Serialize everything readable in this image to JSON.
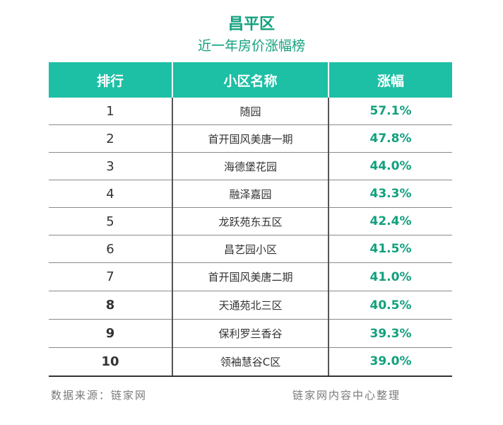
{
  "colors": {
    "accent": "#1dbfa5",
    "rate_text": "#12a07e",
    "title_text": "#12a07e",
    "header_text": "#ffffff",
    "footnote_text": "#7a7a7a"
  },
  "chart_data": {
    "type": "table",
    "title": "昌平区",
    "subtitle": "近一年房价涨幅榜",
    "columns": [
      "排行",
      "小区名称",
      "涨幅"
    ],
    "rows": [
      {
        "rank": "1",
        "name": "随园",
        "rate": "57.1%"
      },
      {
        "rank": "2",
        "name": "首开国风美唐一期",
        "rate": "47.8%"
      },
      {
        "rank": "3",
        "name": "海德堡花园",
        "rate": "44.0%"
      },
      {
        "rank": "4",
        "name": "融泽嘉园",
        "rate": "43.3%"
      },
      {
        "rank": "5",
        "name": "龙跃苑东五区",
        "rate": "42.4%"
      },
      {
        "rank": "6",
        "name": "昌艺园小区",
        "rate": "41.5%"
      },
      {
        "rank": "7",
        "name": "首开国风美唐二期",
        "rate": "41.0%"
      },
      {
        "rank": "8",
        "name": "天通苑北三区",
        "rate": "40.5%"
      },
      {
        "rank": "9",
        "name": "保利罗兰香谷",
        "rate": "39.3%"
      },
      {
        "rank": "10",
        "name": "领袖慧谷C区",
        "rate": "39.0%"
      }
    ]
  },
  "footer": {
    "source": "数据来源：链家网",
    "compiled_by": "链家网内容中心整理"
  }
}
